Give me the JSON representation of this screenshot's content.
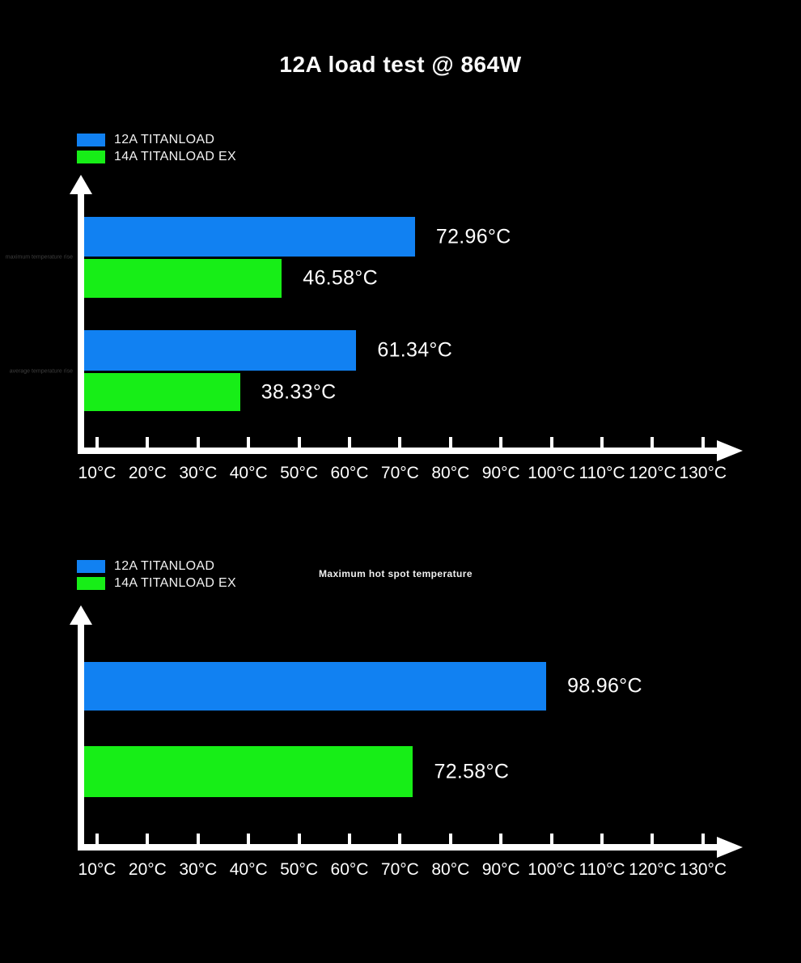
{
  "title": "12A load test @ 864W",
  "colors": {
    "background": "#000000",
    "axis": "#ffffff",
    "text": "#ffffff",
    "muted_label": "#3e3e3e",
    "blue": "#1181f2",
    "green": "#17ee17"
  },
  "legend": {
    "items": [
      {
        "label": "12A TITANLOAD",
        "color": "blue"
      },
      {
        "label": "14A TITANLOAD EX",
        "color": "green"
      }
    ]
  },
  "x_axis": {
    "tick_labels": [
      "10°C",
      "20°C",
      "30°C",
      "40°C",
      "50°C",
      "60°C",
      "70°C",
      "80°C",
      "90°C",
      "100°C",
      "110°C",
      "120°C",
      "130°C"
    ],
    "min": 10,
    "max": 130,
    "step": 10,
    "unit": "°C"
  },
  "chart_data": [
    {
      "type": "bar",
      "orientation": "horizontal",
      "title": "",
      "categories": [
        "maximum temperature rise",
        "average temperature rise"
      ],
      "series": [
        {
          "name": "12A TITANLOAD",
          "color": "blue",
          "values": [
            72.96,
            61.34
          ],
          "labels": [
            "72.96°C",
            "61.34°C"
          ]
        },
        {
          "name": "14A TITANLOAD EX",
          "color": "green",
          "values": [
            46.58,
            38.33
          ],
          "labels": [
            "46.58°C",
            "38.33°C"
          ]
        }
      ],
      "xlim": [
        10,
        130
      ],
      "unit": "°C",
      "grid": false,
      "legend_position": "top-left"
    },
    {
      "type": "bar",
      "orientation": "horizontal",
      "title": "Maximum hot spot temperature",
      "categories": [
        ""
      ],
      "series": [
        {
          "name": "12A TITANLOAD",
          "color": "blue",
          "values": [
            98.96
          ],
          "labels": [
            "98.96°C"
          ]
        },
        {
          "name": "14A TITANLOAD EX",
          "color": "green",
          "values": [
            72.58
          ],
          "labels": [
            "72.58°C"
          ]
        }
      ],
      "xlim": [
        10,
        130
      ],
      "unit": "°C",
      "grid": false,
      "legend_position": "top-left"
    }
  ]
}
